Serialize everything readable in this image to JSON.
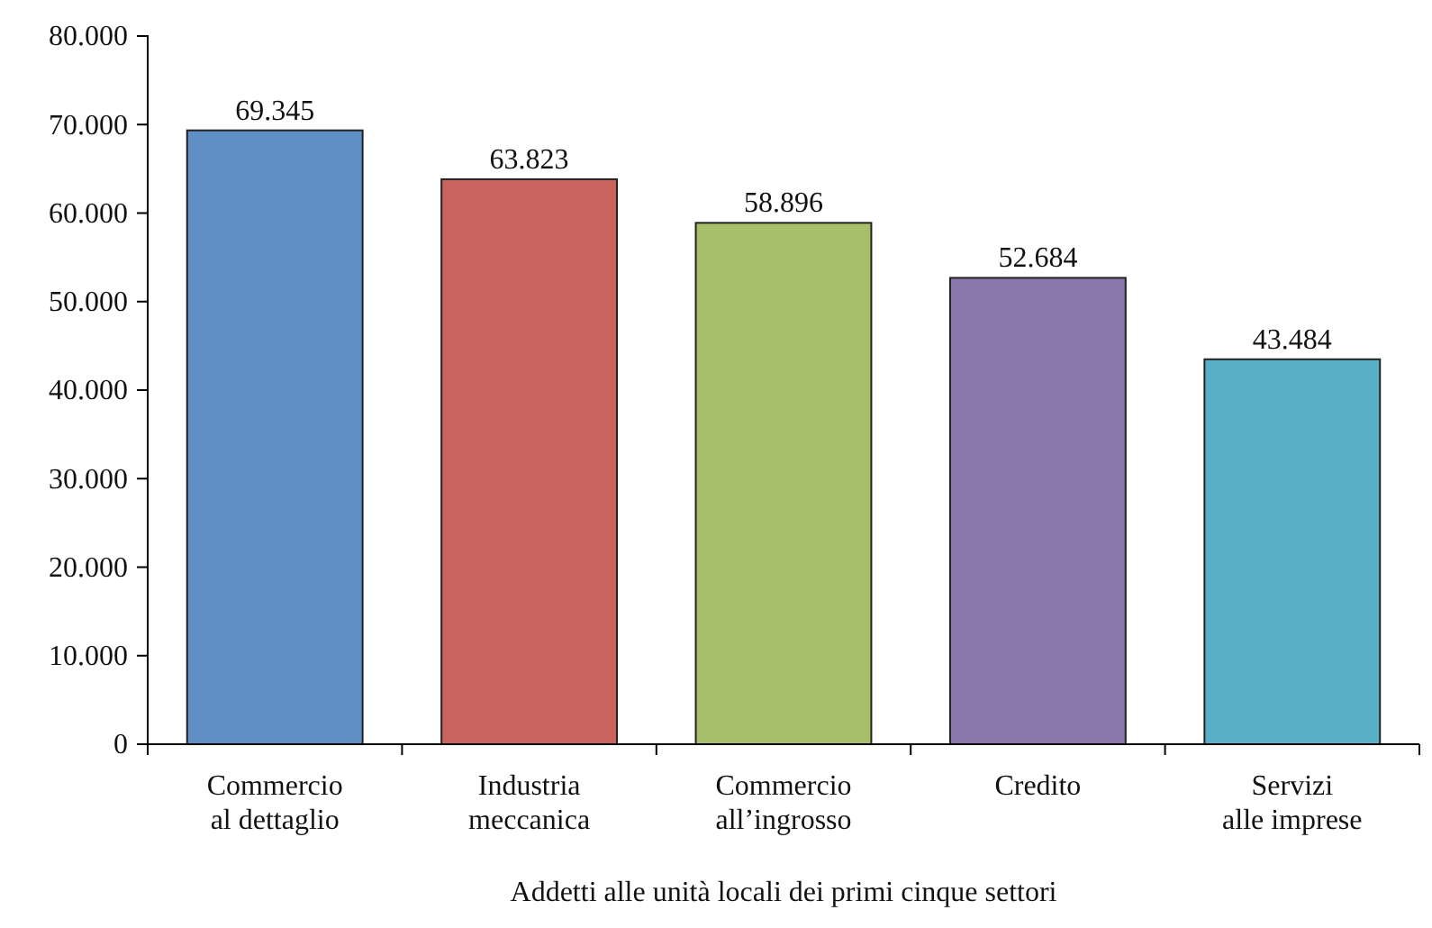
{
  "chart_data": {
    "type": "bar",
    "xlabel": "Addetti alle unità locali dei primi cinque settori",
    "categories": [
      "Commercio al dettaglio",
      "Industria meccanica",
      "Commercio all’ingrosso",
      "Credito",
      "Servizi alle imprese"
    ],
    "values": [
      69345,
      63823,
      58896,
      52684,
      43484
    ],
    "colors": [
      "#5f8fc5",
      "#c9635d",
      "#a7bf6a",
      "#8b77ac",
      "#58b0c6"
    ],
    "value_labels": [
      "69.345",
      "63.823",
      "58.896",
      "52.684",
      "43.484"
    ],
    "ylim": [
      0,
      80000
    ],
    "yticks": [
      0,
      {
        "value": 10000,
        "label": "10.000"
      },
      {
        "value": 20000,
        "label": "20.000"
      },
      {
        "value": 30000,
        "label": "30.000"
      },
      {
        "value": 40000,
        "label": "40.000"
      },
      {
        "value": 50000,
        "label": "50.000"
      },
      {
        "value": 60000,
        "label": "60.000"
      },
      {
        "value": 70000,
        "label": "70.000"
      },
      {
        "value": 80000,
        "label": "80.000"
      }
    ],
    "tick_labels": true
  }
}
